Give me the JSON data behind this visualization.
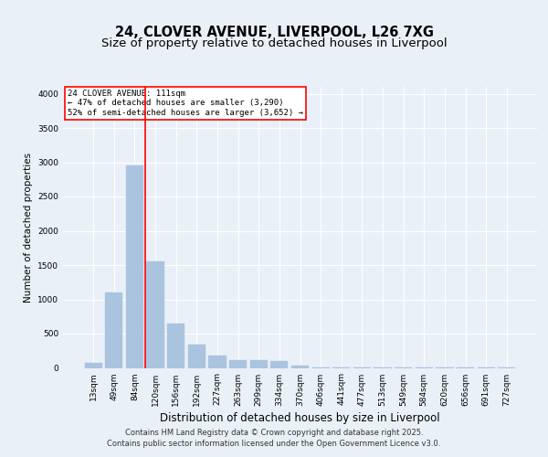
{
  "title_line1": "24, CLOVER AVENUE, LIVERPOOL, L26 7XG",
  "title_line2": "Size of property relative to detached houses in Liverpool",
  "xlabel": "Distribution of detached houses by size in Liverpool",
  "ylabel": "Number of detached properties",
  "categories": [
    "13sqm",
    "49sqm",
    "84sqm",
    "120sqm",
    "156sqm",
    "192sqm",
    "227sqm",
    "263sqm",
    "299sqm",
    "334sqm",
    "370sqm",
    "406sqm",
    "441sqm",
    "477sqm",
    "513sqm",
    "549sqm",
    "584sqm",
    "620sqm",
    "656sqm",
    "691sqm",
    "727sqm"
  ],
  "values": [
    75,
    1100,
    2950,
    1550,
    650,
    340,
    185,
    120,
    120,
    100,
    35,
    10,
    8,
    5,
    3,
    2,
    1,
    1,
    1,
    1,
    1
  ],
  "bar_color": "#aac4e0",
  "bar_edgecolor": "#aac4e0",
  "vline_color": "red",
  "annotation_text": "24 CLOVER AVENUE: 111sqm\n← 47% of detached houses are smaller (3,290)\n52% of semi-detached houses are larger (3,652) →",
  "annotation_box_color": "white",
  "annotation_box_edgecolor": "red",
  "ylim": [
    0,
    4100
  ],
  "yticks": [
    0,
    500,
    1000,
    1500,
    2000,
    2500,
    3000,
    3500,
    4000
  ],
  "background_color": "#eaf0f8",
  "plot_bg_color": "#eaf0f8",
  "grid_color": "white",
  "footer_line1": "Contains HM Land Registry data © Crown copyright and database right 2025.",
  "footer_line2": "Contains public sector information licensed under the Open Government Licence v3.0.",
  "title_fontsize": 10.5,
  "subtitle_fontsize": 9.5,
  "xlabel_fontsize": 8.5,
  "ylabel_fontsize": 7.5,
  "tick_fontsize": 6.5,
  "footer_fontsize": 6.0
}
